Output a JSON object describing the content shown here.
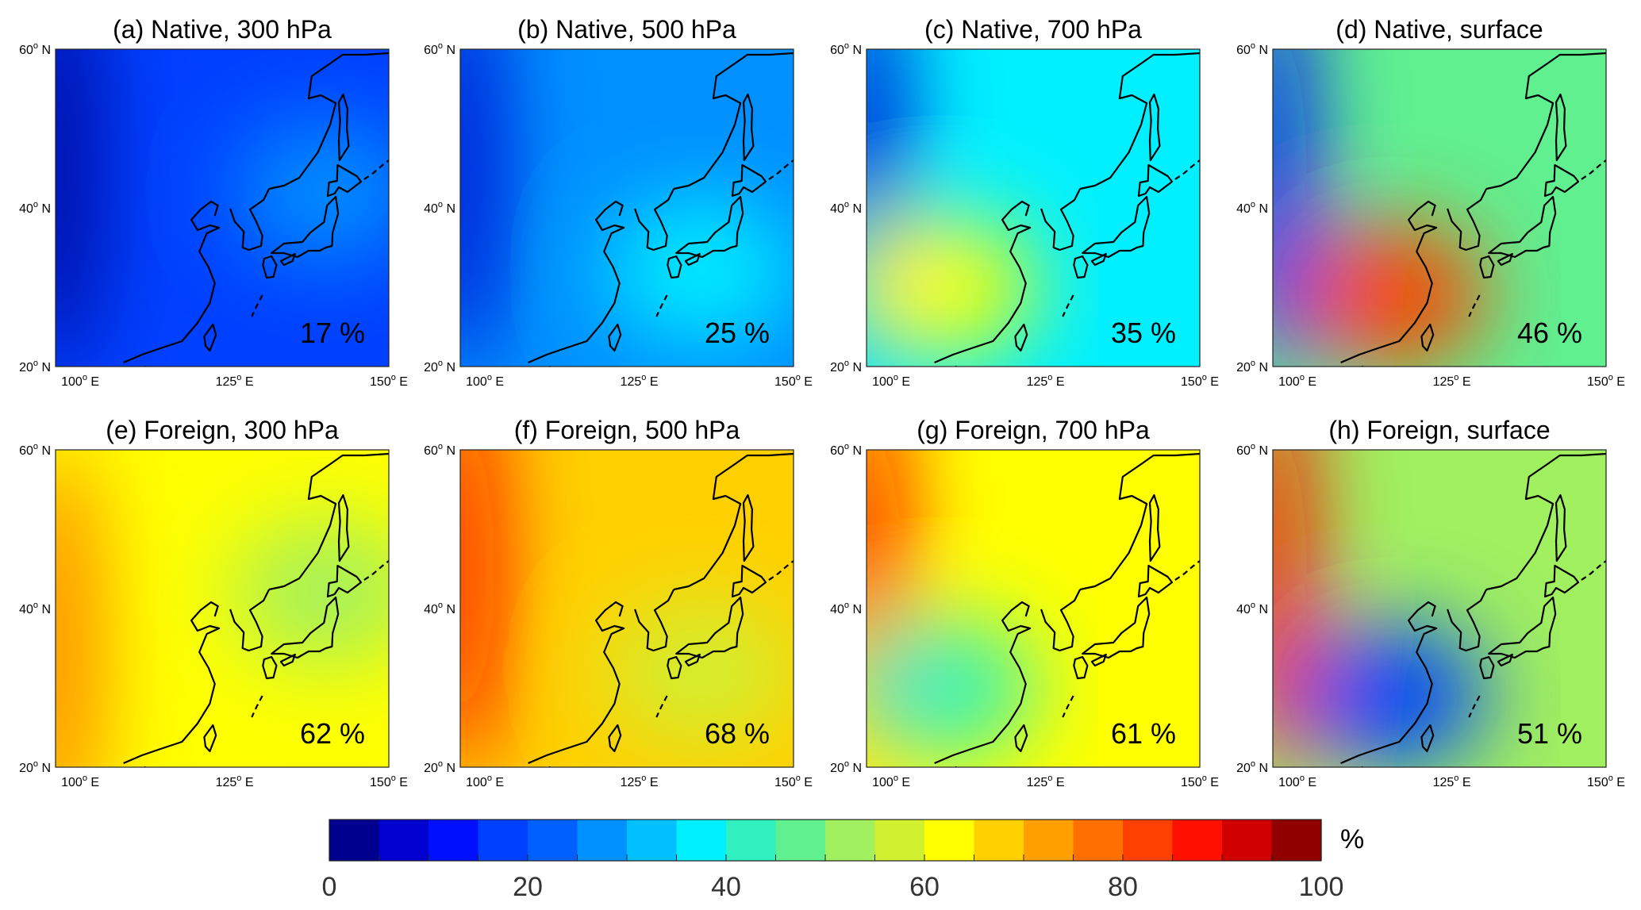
{
  "figure_label": "Contribution of native and foreign sources by pressure level",
  "chart_data": [
    {
      "type": "heatmap",
      "panel_id": "a",
      "title": "(a) Native, 300 hPa",
      "annotation": "17 %",
      "value": 17,
      "region_mean_percent": 17,
      "x_ticks": [
        "100° E",
        "125° E",
        "150° E"
      ],
      "y_ticks": [
        "20° N",
        "40° N",
        "60° N"
      ],
      "xlim": [
        96,
        150
      ],
      "ylim": [
        20,
        60
      ],
      "hotspots": [
        {
          "lon": 96,
          "lat": 45,
          "percent": 3
        },
        {
          "lon": 140,
          "lat": 42,
          "percent": 25
        }
      ]
    },
    {
      "type": "heatmap",
      "panel_id": "b",
      "title": "(b) Native, 500 hPa",
      "annotation": "25 %",
      "value": 25,
      "region_mean_percent": 25,
      "x_ticks": [
        "100° E",
        "125° E",
        "150° E"
      ],
      "y_ticks": [
        "20° N",
        "40° N",
        "60° N"
      ],
      "xlim": [
        96,
        150
      ],
      "ylim": [
        20,
        60
      ],
      "hotspots": [
        {
          "lon": 96,
          "lat": 45,
          "percent": 5
        },
        {
          "lon": 135,
          "lat": 32,
          "percent": 36
        }
      ]
    },
    {
      "type": "heatmap",
      "panel_id": "c",
      "title": "(c) Native, 700 hPa",
      "annotation": "35 %",
      "value": 35,
      "region_mean_percent": 35,
      "x_ticks": [
        "100° E",
        "125° E",
        "150° E"
      ],
      "y_ticks": [
        "20° N",
        "40° N",
        "60° N"
      ],
      "xlim": [
        96,
        150
      ],
      "ylim": [
        20,
        60
      ],
      "hotspots": [
        {
          "lon": 96,
          "lat": 45,
          "percent": 5
        },
        {
          "lon": 108,
          "lat": 30,
          "percent": 62
        }
      ]
    },
    {
      "type": "heatmap",
      "panel_id": "d",
      "title": "(d) Native, surface",
      "annotation": "46 %",
      "value": 46,
      "region_mean_percent": 46,
      "x_ticks": [
        "100° E",
        "125° E",
        "150° E"
      ],
      "y_ticks": [
        "20° N",
        "40° N",
        "60° N"
      ],
      "xlim": [
        96,
        150
      ],
      "ylim": [
        20,
        60
      ],
      "hotspots": [
        {
          "lon": 96,
          "lat": 45,
          "percent": 10
        },
        {
          "lon": 115,
          "lat": 29,
          "percent": 82
        }
      ]
    },
    {
      "type": "heatmap",
      "panel_id": "e",
      "title": "(e) Foreign, 300 hPa",
      "annotation": "62 %",
      "value": 62,
      "region_mean_percent": 62,
      "x_ticks": [
        "100° E",
        "125° E",
        "150° E"
      ],
      "y_ticks": [
        "20° N",
        "40° N",
        "60° N"
      ],
      "xlim": [
        96,
        150
      ],
      "ylim": [
        20,
        60
      ],
      "hotspots": [
        {
          "lon": 96,
          "lat": 35,
          "percent": 78
        },
        {
          "lon": 140,
          "lat": 42,
          "percent": 50
        }
      ]
    },
    {
      "type": "heatmap",
      "panel_id": "f",
      "title": "(f) Foreign, 500 hPa",
      "annotation": "68 %",
      "value": 68,
      "region_mean_percent": 68,
      "x_ticks": [
        "100° E",
        "125° E",
        "150° E"
      ],
      "y_ticks": [
        "20° N",
        "40° N",
        "60° N"
      ],
      "xlim": [
        96,
        150
      ],
      "ylim": [
        20,
        60
      ],
      "hotspots": [
        {
          "lon": 96,
          "lat": 45,
          "percent": 88
        },
        {
          "lon": 135,
          "lat": 32,
          "percent": 58
        }
      ]
    },
    {
      "type": "heatmap",
      "panel_id": "g",
      "title": "(g) Foreign, 700 hPa",
      "annotation": "61 %",
      "value": 61,
      "region_mean_percent": 61,
      "x_ticks": [
        "100° E",
        "125° E",
        "150° E"
      ],
      "y_ticks": [
        "20° N",
        "40° N",
        "60° N"
      ],
      "xlim": [
        96,
        150
      ],
      "ylim": [
        20,
        60
      ],
      "hotspots": [
        {
          "lon": 96,
          "lat": 45,
          "percent": 88
        },
        {
          "lon": 108,
          "lat": 30,
          "percent": 40
        }
      ]
    },
    {
      "type": "heatmap",
      "panel_id": "h",
      "title": "(h) Foreign, surface",
      "annotation": "51 %",
      "value": 51,
      "region_mean_percent": 51,
      "x_ticks": [
        "100° E",
        "125° E",
        "150° E"
      ],
      "y_ticks": [
        "20° N",
        "40° N",
        "60° N"
      ],
      "xlim": [
        96,
        150
      ],
      "ylim": [
        20,
        60
      ],
      "hotspots": [
        {
          "lon": 96,
          "lat": 45,
          "percent": 86
        },
        {
          "lon": 115,
          "lat": 29,
          "percent": 15
        }
      ]
    }
  ],
  "colorbar": {
    "unit": "%",
    "range": [
      0,
      100
    ],
    "step": 5,
    "tick_values": [
      0,
      20,
      40,
      60,
      80,
      100
    ],
    "tick_labels": [
      "0",
      "20",
      "40",
      "60",
      "80",
      "100"
    ],
    "colors": [
      "#00008f",
      "#0000cf",
      "#0010ff",
      "#0040ff",
      "#0060ff",
      "#0090ff",
      "#00c0ff",
      "#00f0ff",
      "#30f0c0",
      "#60f090",
      "#a0f060",
      "#d0f030",
      "#ffff00",
      "#ffd000",
      "#ffa000",
      "#ff7000",
      "#ff4000",
      "#ff1000",
      "#d00000",
      "#900000"
    ]
  }
}
